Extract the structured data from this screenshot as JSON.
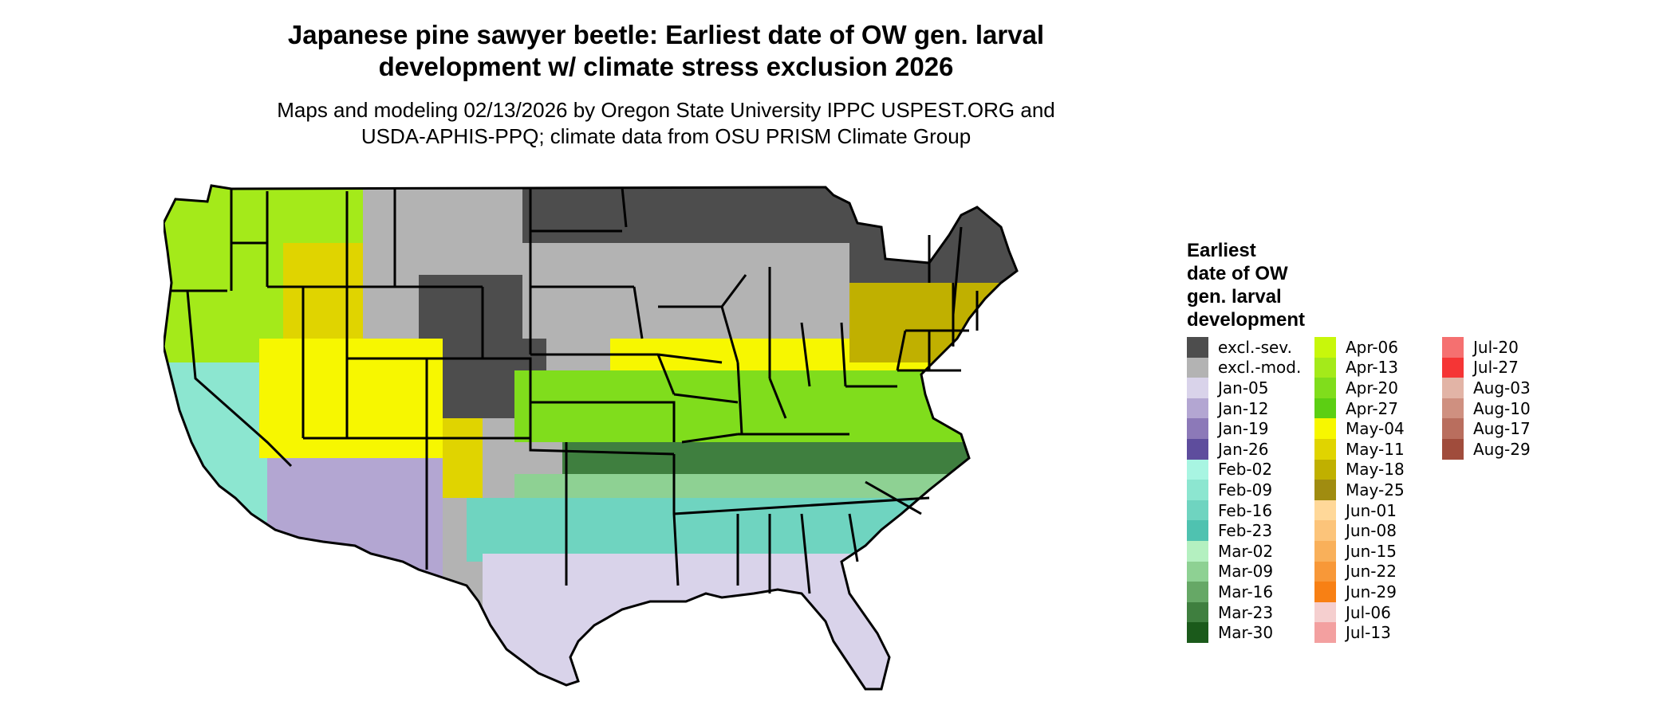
{
  "title": {
    "line1": "Japanese pine sawyer beetle: Earliest date of OW gen. larval",
    "line2": "development w/ climate stress exclusion 2026"
  },
  "subtitle": {
    "line1": "Maps and modeling 02/13/2026 by Oregon State University IPPC USPEST.ORG and",
    "line2": "USDA-APHIS-PPQ; climate data from OSU PRISM Climate Group"
  },
  "legend": {
    "title_lines": [
      "Earliest",
      "date of OW",
      "gen. larval",
      "development"
    ],
    "columns": [
      [
        {
          "label": "excl.-sev.",
          "color": "#4d4d4d"
        },
        {
          "label": "excl.-mod.",
          "color": "#b3b3b3"
        },
        {
          "label": "Jan-05",
          "color": "#d9d3ea"
        },
        {
          "label": "Jan-12",
          "color": "#b3a6d2"
        },
        {
          "label": "Jan-19",
          "color": "#8c79b8"
        },
        {
          "label": "Jan-26",
          "color": "#5e4d9d"
        },
        {
          "label": "Feb-02",
          "color": "#a8f5e2"
        },
        {
          "label": "Feb-09",
          "color": "#8ce6d0"
        },
        {
          "label": "Feb-16",
          "color": "#6fd4c0"
        },
        {
          "label": "Feb-23",
          "color": "#4fc2b0"
        },
        {
          "label": "Mar-02",
          "color": "#b4f0c0"
        },
        {
          "label": "Mar-09",
          "color": "#8ed193"
        },
        {
          "label": "Mar-16",
          "color": "#66a866"
        },
        {
          "label": "Mar-23",
          "color": "#3f7f3f"
        },
        {
          "label": "Mar-30",
          "color": "#1b5a1b"
        }
      ],
      [
        {
          "label": "Apr-06",
          "color": "#c8f70b"
        },
        {
          "label": "Apr-13",
          "color": "#a4ea1a"
        },
        {
          "label": "Apr-20",
          "color": "#80dd1c"
        },
        {
          "label": "Apr-27",
          "color": "#5ccf13"
        },
        {
          "label": "May-04",
          "color": "#f7f700"
        },
        {
          "label": "May-11",
          "color": "#e0d400"
        },
        {
          "label": "May-18",
          "color": "#c0b000"
        },
        {
          "label": "May-25",
          "color": "#a08c10"
        },
        {
          "label": "Jun-01",
          "color": "#ffd899"
        },
        {
          "label": "Jun-08",
          "color": "#fcc47a"
        },
        {
          "label": "Jun-15",
          "color": "#f9b05a"
        },
        {
          "label": "Jun-22",
          "color": "#f89838"
        },
        {
          "label": "Jun-29",
          "color": "#f88014"
        },
        {
          "label": "Jul-06",
          "color": "#f5cfcf"
        },
        {
          "label": "Jul-13",
          "color": "#f3a0a0"
        }
      ],
      [
        {
          "label": "Jul-20",
          "color": "#f57070"
        },
        {
          "label": "Jul-27",
          "color": "#f53535"
        },
        {
          "label": "Aug-03",
          "color": "#e2b4a6"
        },
        {
          "label": "Aug-10",
          "color": "#cf9080"
        },
        {
          "label": "Aug-17",
          "color": "#b96e5e"
        },
        {
          "label": "Aug-29",
          "color": "#a04c3c"
        }
      ]
    ]
  },
  "map": {
    "region": "contiguous-united-states",
    "exclusion_severe_color": "#4d4d4d",
    "exclusion_moderate_color": "#b3b3b3",
    "border_color": "#000000"
  }
}
